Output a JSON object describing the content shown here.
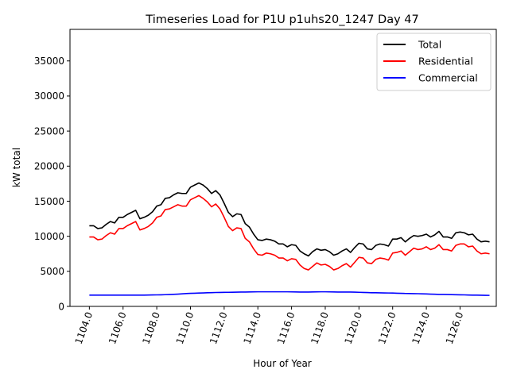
{
  "chart_data": {
    "type": "line",
    "title": "Timeseries Load for P1U p1uhs20_1247  Day 47",
    "xlabel": "Hour of Year",
    "ylabel": "kW total",
    "xlim": [
      1102.85,
      1128.15
    ],
    "ylim": [
      0,
      39500
    ],
    "xticks": [
      1104,
      1106,
      1108,
      1110,
      1112,
      1114,
      1116,
      1118,
      1120,
      1122,
      1124,
      1126
    ],
    "xtick_labels": [
      "1104.0",
      "1106.0",
      "1108.0",
      "1110.0",
      "1112.0",
      "1114.0",
      "1116.0",
      "1118.0",
      "1120.0",
      "1122.0",
      "1124.0",
      "1126.0"
    ],
    "yticks": [
      0,
      5000,
      10000,
      15000,
      20000,
      25000,
      30000,
      35000
    ],
    "ytick_labels": [
      "0",
      "5000",
      "10000",
      "15000",
      "20000",
      "25000",
      "30000",
      "35000"
    ],
    "grid": false,
    "legend_position": "top-right",
    "x": [
      1104.0,
      1104.25,
      1104.5,
      1104.75,
      1105.0,
      1105.25,
      1105.5,
      1105.75,
      1106.0,
      1106.25,
      1106.5,
      1106.75,
      1107.0,
      1107.25,
      1107.5,
      1107.75,
      1108.0,
      1108.25,
      1108.5,
      1108.75,
      1109.0,
      1109.25,
      1109.5,
      1109.75,
      1110.0,
      1110.25,
      1110.5,
      1110.75,
      1111.0,
      1111.25,
      1111.5,
      1111.75,
      1112.0,
      1112.25,
      1112.5,
      1112.75,
      1113.0,
      1113.25,
      1113.5,
      1113.75,
      1114.0,
      1114.25,
      1114.5,
      1114.75,
      1115.0,
      1115.25,
      1115.5,
      1115.75,
      1116.0,
      1116.25,
      1116.5,
      1116.75,
      1117.0,
      1117.25,
      1117.5,
      1117.75,
      1118.0,
      1118.25,
      1118.5,
      1118.75,
      1119.0,
      1119.25,
      1119.5,
      1119.75,
      1120.0,
      1120.25,
      1120.5,
      1120.75,
      1121.0,
      1121.25,
      1121.5,
      1121.75,
      1122.0,
      1122.25,
      1122.5,
      1122.75,
      1123.0,
      1123.25,
      1123.5,
      1123.75,
      1124.0,
      1124.25,
      1124.5,
      1124.75,
      1125.0,
      1125.25,
      1125.5,
      1125.75,
      1126.0,
      1126.25,
      1126.5,
      1126.75,
      1127.0,
      1127.25,
      1127.5,
      1127.75
    ],
    "series": [
      {
        "name": "Total",
        "color": "#000000",
        "values": [
          11500,
          11500,
          11100,
          11200,
          11700,
          12100,
          11900,
          12700,
          12700,
          13100,
          13400,
          13700,
          12500,
          12700,
          13000,
          13500,
          14300,
          14500,
          15400,
          15500,
          15900,
          16200,
          16100,
          16100,
          17000,
          17300,
          17600,
          17300,
          16800,
          16100,
          16500,
          15900,
          14700,
          13400,
          12800,
          13200,
          13100,
          11800,
          11300,
          10300,
          9500,
          9400,
          9600,
          9500,
          9300,
          8900,
          8900,
          8500,
          8800,
          8700,
          7900,
          7500,
          7200,
          7800,
          8200,
          8000,
          8100,
          7800,
          7300,
          7500,
          7900,
          8200,
          7700,
          8400,
          9000,
          8900,
          8200,
          8100,
          8700,
          8900,
          8800,
          8600,
          9600,
          9600,
          9800,
          9200,
          9700,
          10100,
          10000,
          10100,
          10300,
          9900,
          10200,
          10700,
          9900,
          9900,
          9700,
          10500,
          10600,
          10500,
          10200,
          10300,
          9600,
          9200,
          9300,
          9200
        ]
      },
      {
        "name": "Residential",
        "color": "#ff0000",
        "values": [
          9900,
          9900,
          9500,
          9600,
          10100,
          10500,
          10300,
          11100,
          11100,
          11500,
          11800,
          12100,
          10900,
          11100,
          11400,
          11900,
          12700,
          12900,
          13800,
          13900,
          14200,
          14500,
          14300,
          14300,
          15200,
          15500,
          15800,
          15400,
          14900,
          14200,
          14600,
          13900,
          12700,
          11400,
          10800,
          11200,
          11100,
          9700,
          9200,
          8200,
          7400,
          7300,
          7600,
          7500,
          7300,
          6900,
          6900,
          6500,
          6800,
          6700,
          5900,
          5400,
          5200,
          5700,
          6200,
          5900,
          6000,
          5700,
          5200,
          5400,
          5800,
          6100,
          5600,
          6300,
          7000,
          6900,
          6200,
          6100,
          6700,
          6900,
          6800,
          6600,
          7600,
          7700,
          7900,
          7300,
          7800,
          8300,
          8100,
          8200,
          8500,
          8100,
          8300,
          8800,
          8100,
          8100,
          7900,
          8700,
          8900,
          8900,
          8500,
          8600,
          7900,
          7500,
          7600,
          7500
        ]
      },
      {
        "name": "Commercial",
        "color": "#0000ff",
        "values": [
          1600,
          1600,
          1600,
          1600,
          1600,
          1600,
          1600,
          1600,
          1600,
          1600,
          1600,
          1600,
          1600,
          1610,
          1620,
          1630,
          1640,
          1650,
          1670,
          1690,
          1720,
          1750,
          1790,
          1830,
          1860,
          1880,
          1900,
          1920,
          1940,
          1960,
          1980,
          1990,
          2000,
          2010,
          2020,
          2030,
          2040,
          2050,
          2060,
          2070,
          2080,
          2080,
          2080,
          2080,
          2080,
          2080,
          2080,
          2080,
          2070,
          2060,
          2050,
          2050,
          2050,
          2060,
          2070,
          2080,
          2080,
          2070,
          2060,
          2050,
          2050,
          2050,
          2040,
          2030,
          2010,
          1990,
          1970,
          1950,
          1940,
          1930,
          1920,
          1910,
          1900,
          1880,
          1860,
          1840,
          1830,
          1820,
          1810,
          1790,
          1770,
          1750,
          1730,
          1710,
          1700,
          1690,
          1680,
          1660,
          1650,
          1640,
          1620,
          1610,
          1600,
          1590,
          1580,
          1570
        ]
      }
    ]
  }
}
